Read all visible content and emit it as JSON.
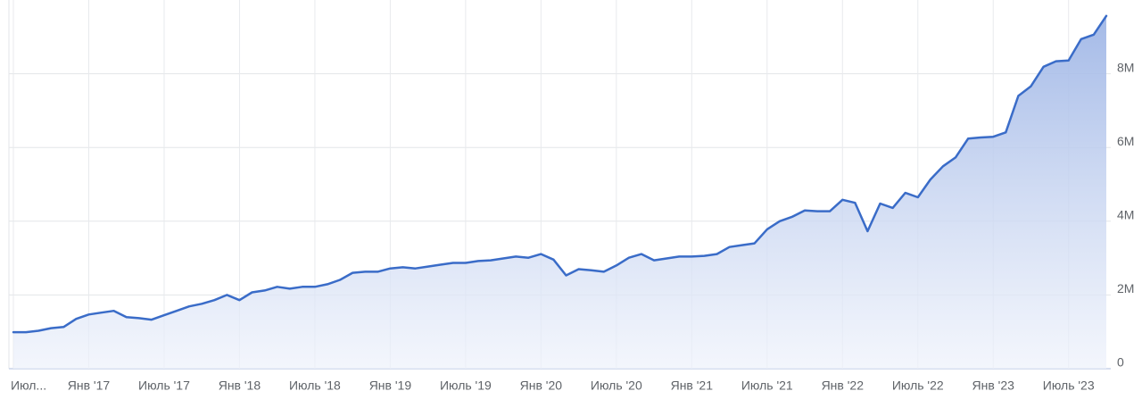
{
  "chart_data": {
    "type": "area",
    "categories": [
      "Июл...",
      null,
      null,
      null,
      null,
      null,
      "Янв '17",
      null,
      null,
      null,
      null,
      null,
      "Июль '17",
      null,
      null,
      null,
      null,
      null,
      "Янв '18",
      null,
      null,
      null,
      null,
      null,
      "Июль '18",
      null,
      null,
      null,
      null,
      null,
      "Янв '19",
      null,
      null,
      null,
      null,
      null,
      "Июль '19",
      null,
      null,
      null,
      null,
      null,
      "Янв '20",
      null,
      null,
      null,
      null,
      null,
      "Июль '20",
      null,
      null,
      null,
      null,
      null,
      "Янв '21",
      null,
      null,
      null,
      null,
      null,
      "Июль '21",
      null,
      null,
      null,
      null,
      null,
      "Янв '22",
      null,
      null,
      null,
      null,
      null,
      "Июль '22",
      null,
      null,
      null,
      null,
      null,
      "Янв '23",
      null,
      null,
      null,
      null,
      null,
      "Июль '23",
      null,
      null,
      null
    ],
    "values": [
      990000,
      990000,
      1030000,
      1100000,
      1130000,
      1350000,
      1470000,
      1520000,
      1570000,
      1400000,
      1370000,
      1330000,
      1450000,
      1570000,
      1690000,
      1760000,
      1860000,
      2000000,
      1860000,
      2070000,
      2120000,
      2220000,
      2170000,
      2220000,
      2220000,
      2290000,
      2410000,
      2600000,
      2630000,
      2630000,
      2720000,
      2750000,
      2720000,
      2770000,
      2820000,
      2870000,
      2870000,
      2920000,
      2940000,
      2990000,
      3040000,
      3010000,
      3110000,
      2960000,
      2530000,
      2700000,
      2670000,
      2630000,
      2800000,
      3010000,
      3110000,
      2940000,
      2990000,
      3040000,
      3040000,
      3060000,
      3110000,
      3300000,
      3350000,
      3400000,
      3780000,
      4000000,
      4120000,
      4290000,
      4270000,
      4270000,
      4580000,
      4500000,
      3730000,
      4480000,
      4360000,
      4770000,
      4650000,
      5130000,
      5490000,
      5730000,
      6240000,
      6270000,
      6290000,
      6410000,
      7400000,
      7660000,
      8190000,
      8340000,
      8360000,
      8940000,
      9060000,
      9570000
    ],
    "color": "#3a6cc8",
    "ylim": [
      0,
      10000000
    ],
    "yticks": [
      0,
      {
        "value": 2000000,
        "label": "2M"
      },
      {
        "value": 4000000,
        "label": "4M"
      },
      {
        "value": 6000000,
        "label": "6M"
      },
      {
        "value": 8000000,
        "label": "8M"
      }
    ],
    "grid": true
  }
}
